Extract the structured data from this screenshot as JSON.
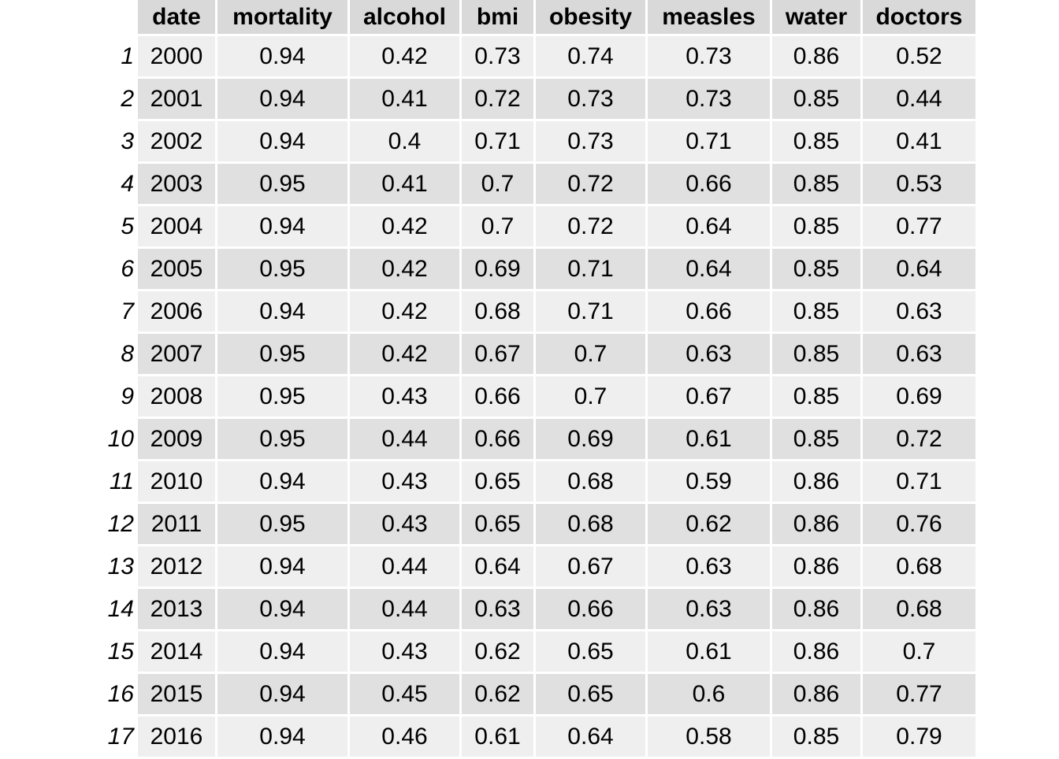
{
  "chart_data": {
    "type": "table",
    "columns": [
      "date",
      "mortality",
      "alcohol",
      "bmi",
      "obesity",
      "measles",
      "water",
      "doctors"
    ],
    "row_labels": [
      "1",
      "2",
      "3",
      "4",
      "5",
      "6",
      "7",
      "8",
      "9",
      "10",
      "11",
      "12",
      "13",
      "14",
      "15",
      "16",
      "17"
    ],
    "rows": [
      [
        "2000",
        "0.94",
        "0.42",
        "0.73",
        "0.74",
        "0.73",
        "0.86",
        "0.52"
      ],
      [
        "2001",
        "0.94",
        "0.41",
        "0.72",
        "0.73",
        "0.73",
        "0.85",
        "0.44"
      ],
      [
        "2002",
        "0.94",
        "0.4",
        "0.71",
        "0.73",
        "0.71",
        "0.85",
        "0.41"
      ],
      [
        "2003",
        "0.95",
        "0.41",
        "0.7",
        "0.72",
        "0.66",
        "0.85",
        "0.53"
      ],
      [
        "2004",
        "0.94",
        "0.42",
        "0.7",
        "0.72",
        "0.64",
        "0.85",
        "0.77"
      ],
      [
        "2005",
        "0.95",
        "0.42",
        "0.69",
        "0.71",
        "0.64",
        "0.85",
        "0.64"
      ],
      [
        "2006",
        "0.94",
        "0.42",
        "0.68",
        "0.71",
        "0.66",
        "0.85",
        "0.63"
      ],
      [
        "2007",
        "0.95",
        "0.42",
        "0.67",
        "0.7",
        "0.63",
        "0.85",
        "0.63"
      ],
      [
        "2008",
        "0.95",
        "0.43",
        "0.66",
        "0.7",
        "0.67",
        "0.85",
        "0.69"
      ],
      [
        "2009",
        "0.95",
        "0.44",
        "0.66",
        "0.69",
        "0.61",
        "0.85",
        "0.72"
      ],
      [
        "2010",
        "0.94",
        "0.43",
        "0.65",
        "0.68",
        "0.59",
        "0.86",
        "0.71"
      ],
      [
        "2011",
        "0.95",
        "0.43",
        "0.65",
        "0.68",
        "0.62",
        "0.86",
        "0.76"
      ],
      [
        "2012",
        "0.94",
        "0.44",
        "0.64",
        "0.67",
        "0.63",
        "0.86",
        "0.68"
      ],
      [
        "2013",
        "0.94",
        "0.44",
        "0.63",
        "0.66",
        "0.63",
        "0.86",
        "0.68"
      ],
      [
        "2014",
        "0.94",
        "0.43",
        "0.62",
        "0.65",
        "0.61",
        "0.86",
        "0.7"
      ],
      [
        "2015",
        "0.94",
        "0.45",
        "0.62",
        "0.65",
        "0.6",
        "0.86",
        "0.77"
      ],
      [
        "2016",
        "0.94",
        "0.46",
        "0.61",
        "0.64",
        "0.58",
        "0.85",
        "0.79"
      ]
    ]
  }
}
